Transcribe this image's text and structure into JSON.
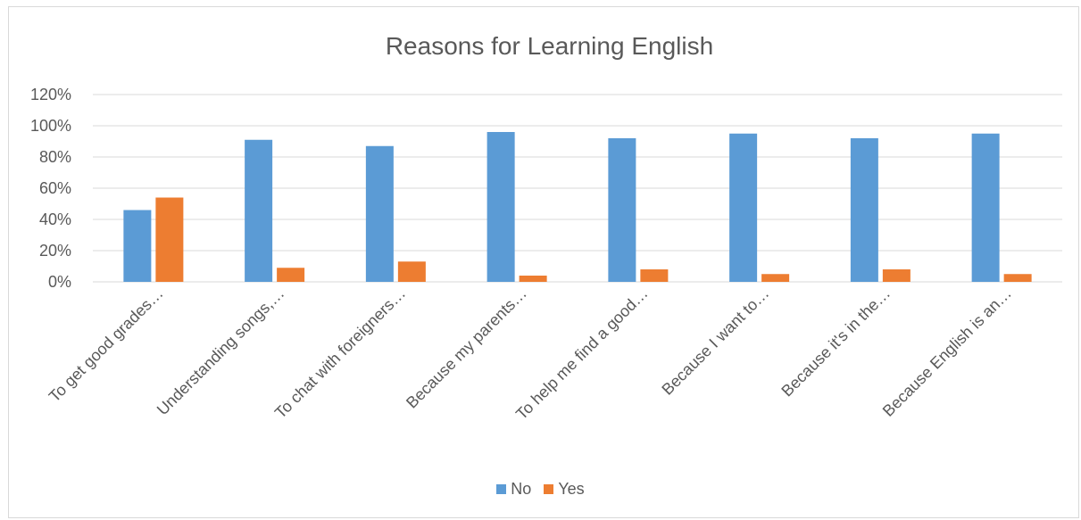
{
  "chart_data": {
    "type": "bar",
    "title": "Reasons for Learning English",
    "categories": [
      "To get good grades…",
      "Understanding songs,…",
      "To chat with foreigners…",
      "Because my parents…",
      "To help me find a good…",
      "Because I want to…",
      "Because it's in the…",
      "Because English is an…"
    ],
    "series": [
      {
        "name": "No",
        "color": "#5b9bd5",
        "values": [
          46,
          91,
          87,
          96,
          92,
          95,
          92,
          95
        ]
      },
      {
        "name": "Yes",
        "color": "#ed7d31",
        "values": [
          54,
          9,
          13,
          4,
          8,
          5,
          8,
          5
        ]
      }
    ],
    "ylim": [
      0,
      120
    ],
    "yticks": [
      0,
      20,
      40,
      60,
      80,
      100,
      120
    ],
    "ytick_labels": [
      "0%",
      "20%",
      "40%",
      "60%",
      "80%",
      "100%",
      "120%"
    ],
    "xlabel": "",
    "ylabel": "",
    "grid": true,
    "legend_position": "bottom"
  }
}
